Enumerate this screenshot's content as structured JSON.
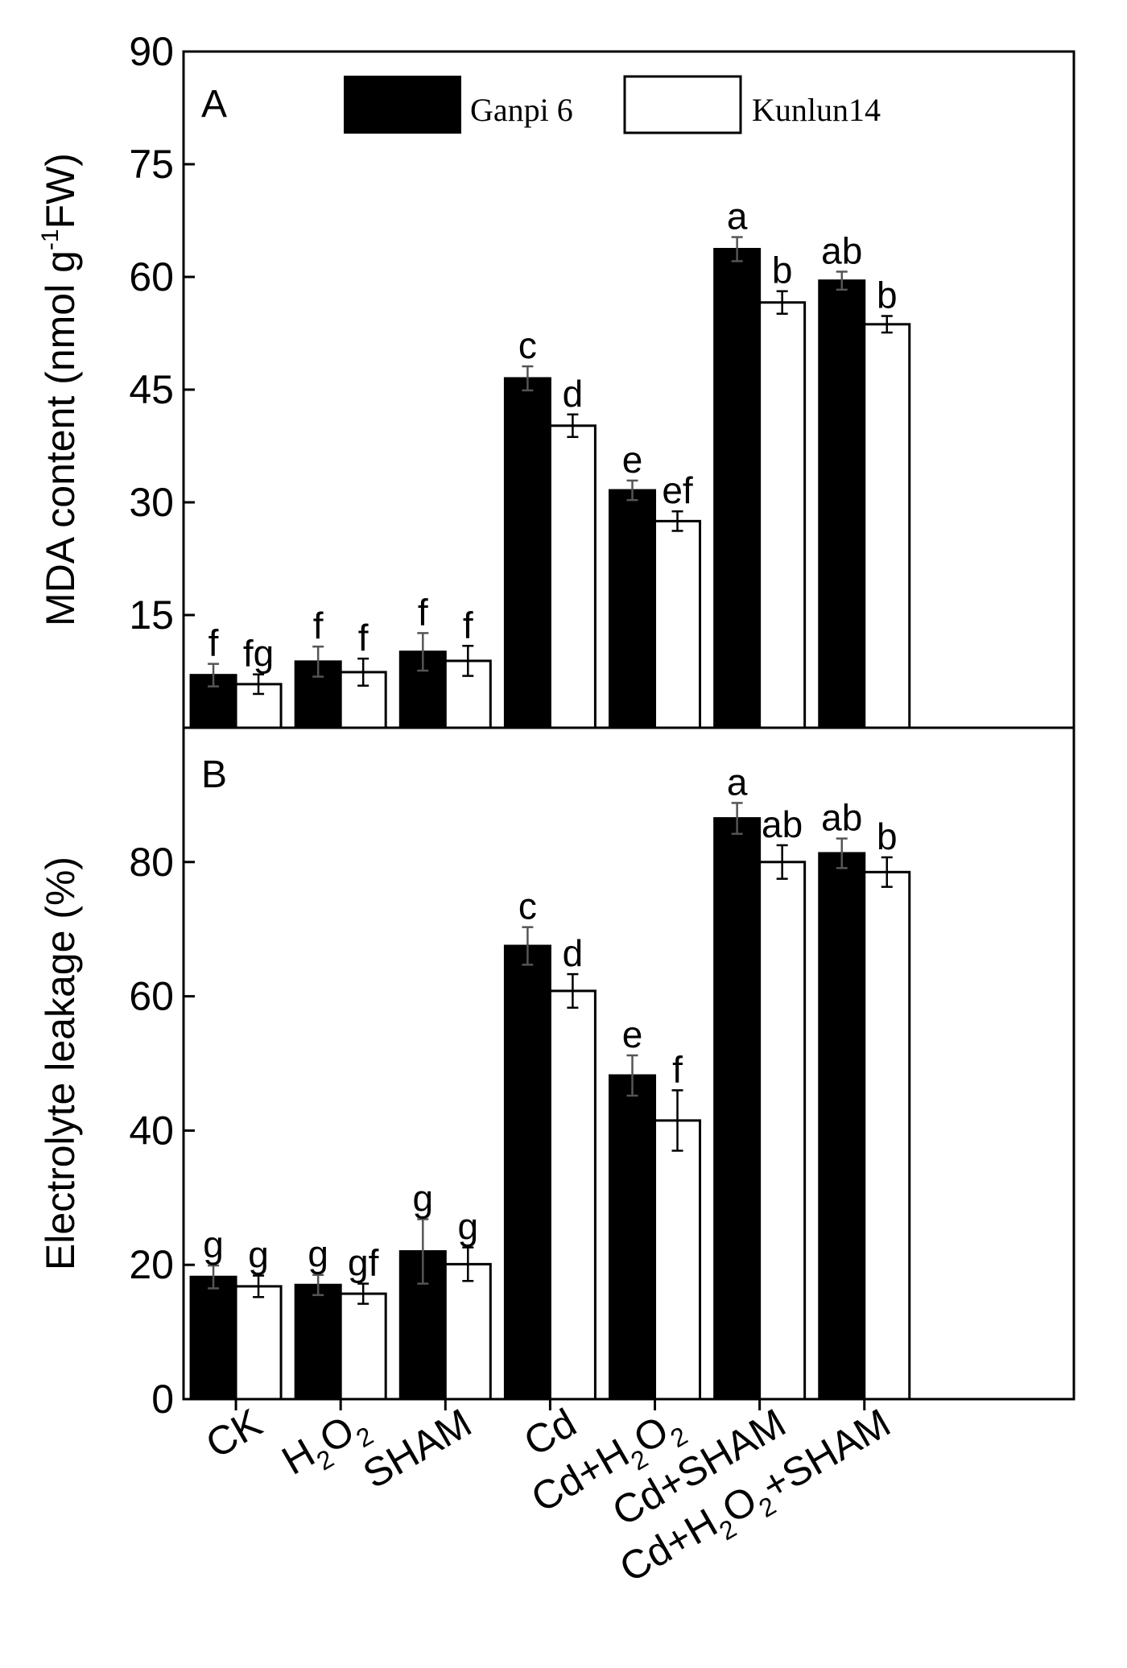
{
  "legend": {
    "series": [
      {
        "name": "Ganpi 6",
        "color": "#000000"
      },
      {
        "name": "Kunlun14",
        "color": "#ffffff"
      }
    ]
  },
  "chart_data": [
    {
      "type": "bar",
      "panel_label": "A",
      "ylabel": {
        "main": "MDA content (nmol g",
        "sup": "-1",
        "tail": "FW)"
      },
      "ylim": [
        0,
        90
      ],
      "yticks": [
        15,
        30,
        45,
        60,
        75,
        90
      ],
      "categories": [
        "CK",
        "H2O2",
        "SHAM",
        "Cd",
        "Cd+H2O2",
        "Cd+SHAM",
        "Cd+H2O2+SHAM"
      ],
      "series": [
        {
          "name": "Ganpi 6",
          "values": [
            7,
            8.8,
            10.1,
            46.5,
            31.6,
            63.7,
            59.5
          ],
          "errors": [
            1.5,
            2,
            2.5,
            1.6,
            1.3,
            1.6,
            1.2
          ],
          "letters": [
            "f",
            "f",
            "f",
            "c",
            "e",
            "a",
            "ab"
          ]
        },
        {
          "name": "Kunlun14",
          "values": [
            5.8,
            7.4,
            8.9,
            40.2,
            27.5,
            56.6,
            53.7
          ],
          "errors": [
            1.3,
            1.8,
            2,
            1.5,
            1.3,
            1.5,
            1.1
          ],
          "letters": [
            "fg",
            "f",
            "f",
            "d",
            "ef",
            "b",
            "b"
          ]
        }
      ]
    },
    {
      "type": "bar",
      "panel_label": "B",
      "ylabel": {
        "main": "Electrolyte leakage (%)"
      },
      "ylim": [
        0,
        100
      ],
      "yticks": [
        0,
        20,
        40,
        60,
        80
      ],
      "categories": [
        "CK",
        "H2O2",
        "SHAM",
        "Cd",
        "Cd+H2O2",
        "Cd+SHAM",
        "Cd+H2O2+SHAM"
      ],
      "series": [
        {
          "name": "Ganpi 6",
          "values": [
            18.2,
            17,
            22,
            67.5,
            48.2,
            86.5,
            81.3
          ],
          "errors": [
            1.7,
            1.5,
            4.8,
            2.8,
            3,
            2.3,
            2.2
          ],
          "letters": [
            "g",
            "g",
            "g",
            "c",
            "e",
            "a",
            "ab"
          ]
        },
        {
          "name": "Kunlun14",
          "values": [
            16.8,
            15.7,
            20.1,
            60.8,
            41.5,
            80,
            78.5
          ],
          "errors": [
            1.6,
            1.5,
            2.5,
            2.5,
            4.5,
            2.5,
            2.2
          ],
          "letters": [
            "g",
            "gf",
            "g",
            "d",
            "f",
            "ab",
            "b"
          ]
        }
      ]
    }
  ]
}
